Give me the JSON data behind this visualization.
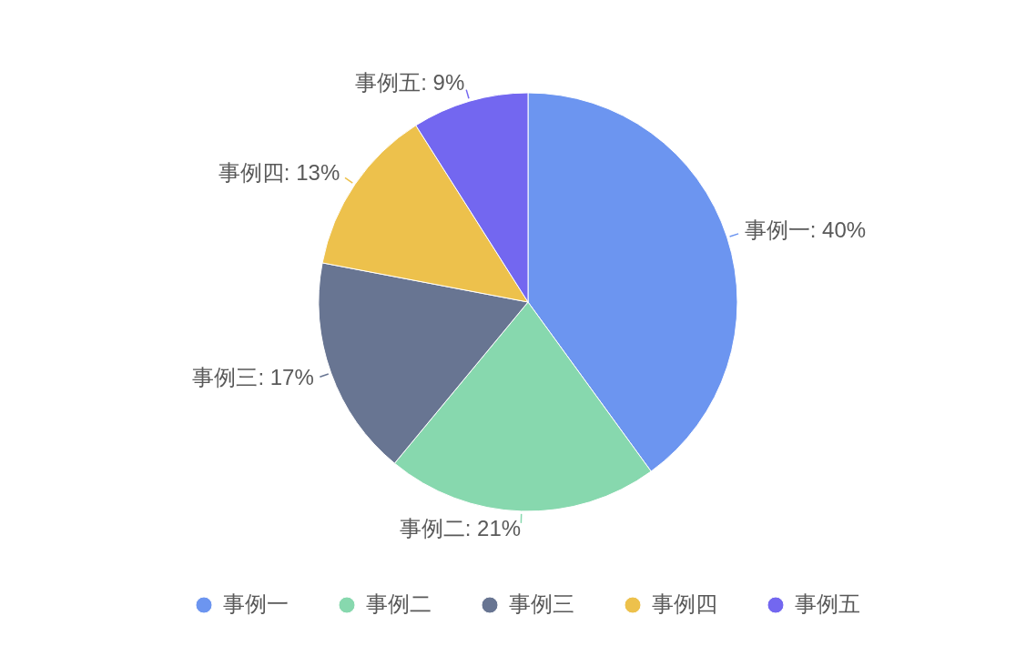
{
  "chart_data": {
    "type": "pie",
    "categories": [
      "事例一",
      "事例二",
      "事例三",
      "事例四",
      "事例五"
    ],
    "values": [
      40,
      21,
      17,
      13,
      9
    ],
    "colors": [
      "#6c95f0",
      "#87d8ae",
      "#687592",
      "#edc14c",
      "#7367f0"
    ],
    "value_labels": [
      "事例一: 40%",
      "事例二: 21%",
      "事例三: 17%",
      "事例四: 13%",
      "事例五: 9%"
    ],
    "legend": "bottom"
  }
}
